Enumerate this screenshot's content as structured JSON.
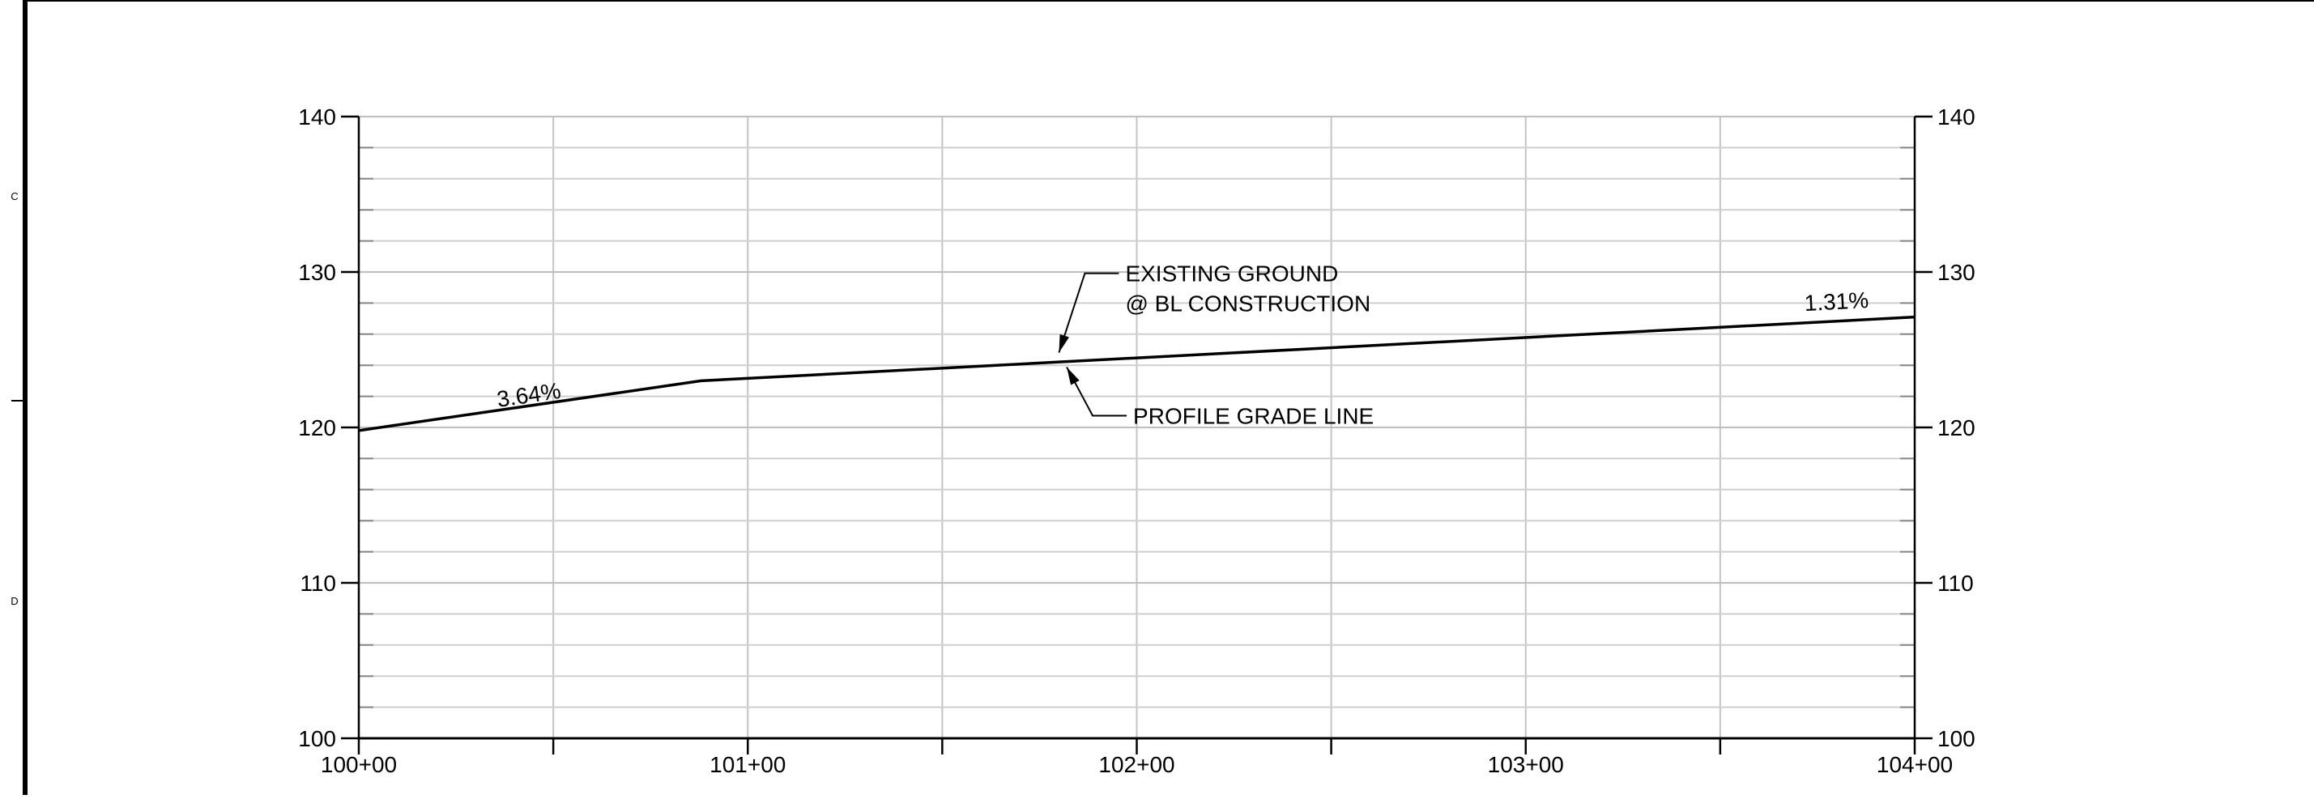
{
  "sheet": {
    "border_letters": [
      "C",
      "D"
    ]
  },
  "chart_data": {
    "type": "line",
    "title": "",
    "xlabel": "",
    "ylabel": "",
    "xlim": [
      100,
      104
    ],
    "ylim": [
      100,
      140
    ],
    "x_tick_values": [
      100,
      101,
      102,
      103,
      104
    ],
    "x_tick_labels": [
      "100+00",
      "101+00",
      "102+00",
      "103+00",
      "104+00"
    ],
    "y_tick_values": [
      100,
      110,
      120,
      130,
      140
    ],
    "y_tick_labels": [
      "100",
      "110",
      "120",
      "130",
      "140"
    ],
    "grid": true,
    "series": [
      {
        "name": "PROFILE GRADE LINE",
        "x": [
          100.0,
          100.88,
          104.0
        ],
        "y": [
          119.8,
          123.0,
          127.1
        ]
      },
      {
        "name": "EXISTING GROUND",
        "x": [
          100.88,
          104.0
        ],
        "y": [
          123.0,
          127.1
        ]
      }
    ],
    "annotations": {
      "existing_ground": {
        "line1": "EXISTING GROUND",
        "line2": "@ BL CONSTRUCTION",
        "target": [
          101.8,
          124.5
        ]
      },
      "profile_grade": {
        "text": "PROFILE GRADE LINE",
        "target": [
          101.82,
          124.3
        ]
      },
      "slopes": [
        {
          "text": "3.64%",
          "x": 100.44,
          "y": 121.6
        },
        {
          "text": "1.31%",
          "x": 103.8,
          "y": 127.6
        }
      ]
    }
  }
}
